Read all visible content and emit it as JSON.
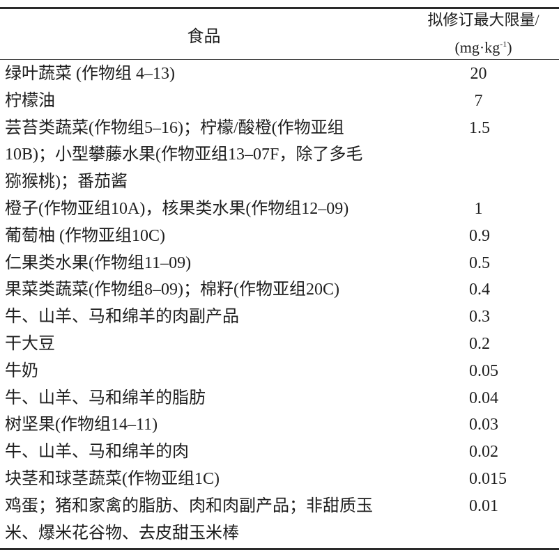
{
  "table": {
    "header": {
      "food": "食品",
      "limit_line1": "拟修订最大限量/",
      "limit_unit_prefix": "(mg·kg",
      "limit_unit_exp": "-1",
      "limit_unit_suffix": ")"
    },
    "rows": [
      {
        "food": [
          "绿叶蔬菜 (作物组 4–13)"
        ],
        "limit": "20"
      },
      {
        "food": [
          "柠檬油"
        ],
        "limit": "7"
      },
      {
        "food": [
          "芸苔类蔬菜(作物组5–16)；柠檬/酸橙(作物亚组",
          "10B)；小型攀藤水果(作物亚组13–07F，除了多毛",
          "猕猴桃)；番茄酱"
        ],
        "limit": "1.5"
      },
      {
        "food": [
          "橙子(作物亚组10A)，核果类水果(作物组12–09)"
        ],
        "limit": "1"
      },
      {
        "food": [
          "葡萄柚 (作物亚组10C)"
        ],
        "limit": "0.9"
      },
      {
        "food": [
          "仁果类水果(作物组11–09)"
        ],
        "limit": "0.5"
      },
      {
        "food": [
          "果菜类蔬菜(作物组8–09)；棉籽(作物亚组20C)"
        ],
        "limit": "0.4"
      },
      {
        "food": [
          "牛、山羊、马和绵羊的肉副产品"
        ],
        "limit": "0.3"
      },
      {
        "food": [
          "干大豆"
        ],
        "limit": "0.2"
      },
      {
        "food": [
          "牛奶"
        ],
        "limit": "0.05"
      },
      {
        "food": [
          "牛、山羊、马和绵羊的脂肪"
        ],
        "limit": "0.04"
      },
      {
        "food": [
          "树坚果(作物组14–11)"
        ],
        "limit": "0.03"
      },
      {
        "food": [
          "牛、山羊、马和绵羊的肉"
        ],
        "limit": "0.02"
      },
      {
        "food": [
          "块茎和球茎蔬菜(作物亚组1C)"
        ],
        "limit": "0.015"
      },
      {
        "food": [
          "鸡蛋；猪和家禽的脂肪、肉和肉副产品；非甜质玉",
          "米、爆米花谷物、去皮甜玉米棒"
        ],
        "limit": "0.01"
      }
    ]
  }
}
